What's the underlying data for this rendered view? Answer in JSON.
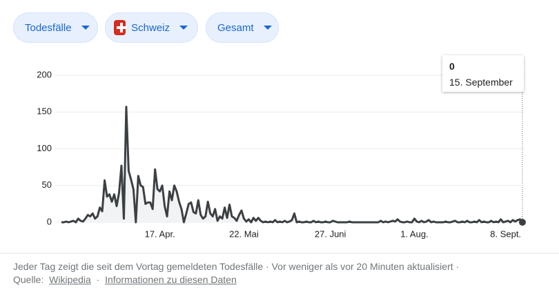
{
  "controls": {
    "metric": "Todesfälle",
    "region": "Schweiz",
    "range": "Gesamt"
  },
  "chart_data": {
    "type": "line",
    "categories": [
      null,
      null,
      null,
      null,
      null,
      null,
      null,
      null,
      null,
      null,
      null,
      null,
      null,
      null,
      null,
      null,
      null,
      null,
      null,
      null,
      null,
      null,
      null,
      null,
      null,
      null,
      null,
      null,
      null,
      null,
      null,
      null,
      null,
      null,
      null,
      null,
      null,
      null,
      null,
      null,
      null,
      "17. Apr.",
      null,
      null,
      null,
      null,
      null,
      null,
      null,
      null,
      null,
      null,
      null,
      null,
      null,
      null,
      null,
      null,
      null,
      null,
      null,
      null,
      null,
      null,
      null,
      null,
      null,
      null,
      null,
      null,
      null,
      null,
      null,
      null,
      null,
      null,
      "22. Mai",
      null,
      null,
      null,
      null,
      null,
      null,
      null,
      null,
      null,
      null,
      null,
      null,
      null,
      null,
      null,
      null,
      null,
      null,
      null,
      null,
      null,
      null,
      null,
      null,
      null,
      null,
      null,
      null,
      null,
      null,
      null,
      null,
      null,
      null,
      null,
      "27. Juni",
      null,
      null,
      null,
      null,
      null,
      null,
      null,
      null,
      null,
      null,
      null,
      null,
      null,
      null,
      null,
      null,
      null,
      null,
      null,
      null,
      null,
      null,
      null,
      null,
      null,
      null,
      null,
      null,
      null,
      null,
      null,
      null,
      null,
      null,
      "1. Aug.",
      null,
      null,
      null,
      null,
      null,
      null,
      null,
      null,
      null,
      null,
      null,
      null,
      null,
      null,
      null,
      null,
      null,
      null,
      null,
      null,
      null,
      null,
      null,
      null,
      null,
      null,
      null,
      null,
      null,
      null,
      null,
      null,
      null,
      null,
      null,
      null,
      null,
      "8. Sept.",
      null,
      null,
      null,
      null,
      null,
      null,
      null
    ],
    "series": [
      {
        "color": "#3c4043",
        "values": [
          0,
          0,
          1,
          0,
          1,
          2,
          0,
          5,
          2,
          1,
          5,
          10,
          8,
          12,
          5,
          8,
          20,
          15,
          57,
          35,
          38,
          28,
          38,
          22,
          40,
          77,
          5,
          157,
          70,
          58,
          45,
          0,
          63,
          50,
          48,
          25,
          27,
          27,
          18,
          72,
          45,
          42,
          50,
          22,
          8,
          42,
          30,
          50,
          42,
          28,
          18,
          0,
          12,
          25,
          27,
          14,
          12,
          30,
          10,
          5,
          8,
          28,
          12,
          8,
          18,
          2,
          8,
          5,
          20,
          6,
          24,
          8,
          6,
          2,
          10,
          16,
          5,
          1,
          4,
          0,
          6,
          2,
          6,
          2,
          0,
          1,
          0,
          1,
          0,
          3,
          0,
          1,
          0,
          2,
          0,
          1,
          3,
          12,
          0,
          1,
          0,
          0,
          1,
          0,
          0,
          2,
          0,
          1,
          0,
          0,
          1,
          0,
          0,
          2,
          1,
          0,
          0,
          0,
          0,
          0,
          1,
          0,
          0,
          0,
          0,
          0,
          0,
          0,
          0,
          0,
          0,
          0,
          0,
          2,
          0,
          1,
          0,
          1,
          2,
          1,
          4,
          1,
          0,
          0,
          1,
          0,
          0,
          5,
          1,
          0,
          2,
          0,
          1,
          3,
          0,
          1,
          0,
          0,
          0,
          0,
          1,
          0,
          0,
          1,
          2,
          0,
          0,
          1,
          0,
          2,
          0,
          0,
          1,
          0,
          3,
          0,
          1,
          0,
          0,
          2,
          0,
          1,
          0,
          4,
          0,
          1,
          2,
          0,
          3,
          1,
          3,
          4,
          0
        ]
      }
    ],
    "ylim": [
      0,
      200
    ],
    "yticks": [
      0,
      50,
      100,
      150,
      200
    ],
    "grid": true,
    "tooltip_date": "15. September"
  },
  "footer": {
    "description": "Jeder Tag zeigt die seit dem Vortag gemeldeten Todesfälle · Vor weniger als vor 20 Minuten aktualisiert ·",
    "source_label": "Quelle:",
    "source": "Wikipedia",
    "separator": "·",
    "info": "Informationen zu diesen Daten"
  }
}
